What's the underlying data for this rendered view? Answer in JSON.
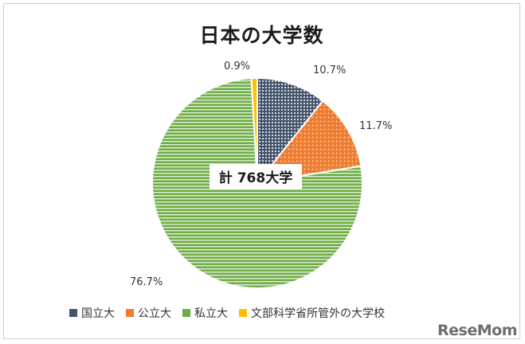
{
  "chart_data": {
    "type": "pie",
    "title": "日本の大学数",
    "center_label": "計 768大学",
    "slices": [
      {
        "name": "国立大",
        "value": 10.7,
        "label": "10.7%",
        "color": "#44546a",
        "pattern": "grid"
      },
      {
        "name": "公立大",
        "value": 11.7,
        "label": "11.7%",
        "color": "#ed7d31",
        "pattern": "dots"
      },
      {
        "name": "私立大",
        "value": 76.7,
        "label": "76.7%",
        "color": "#70ad47",
        "pattern": "hstripes"
      },
      {
        "name": "文部科学省所管外の大学校",
        "value": 0.9,
        "label": "0.9%",
        "color": "#ffc000",
        "pattern": "solid"
      }
    ],
    "legend_position": "bottom"
  },
  "watermark": "ReseMom"
}
